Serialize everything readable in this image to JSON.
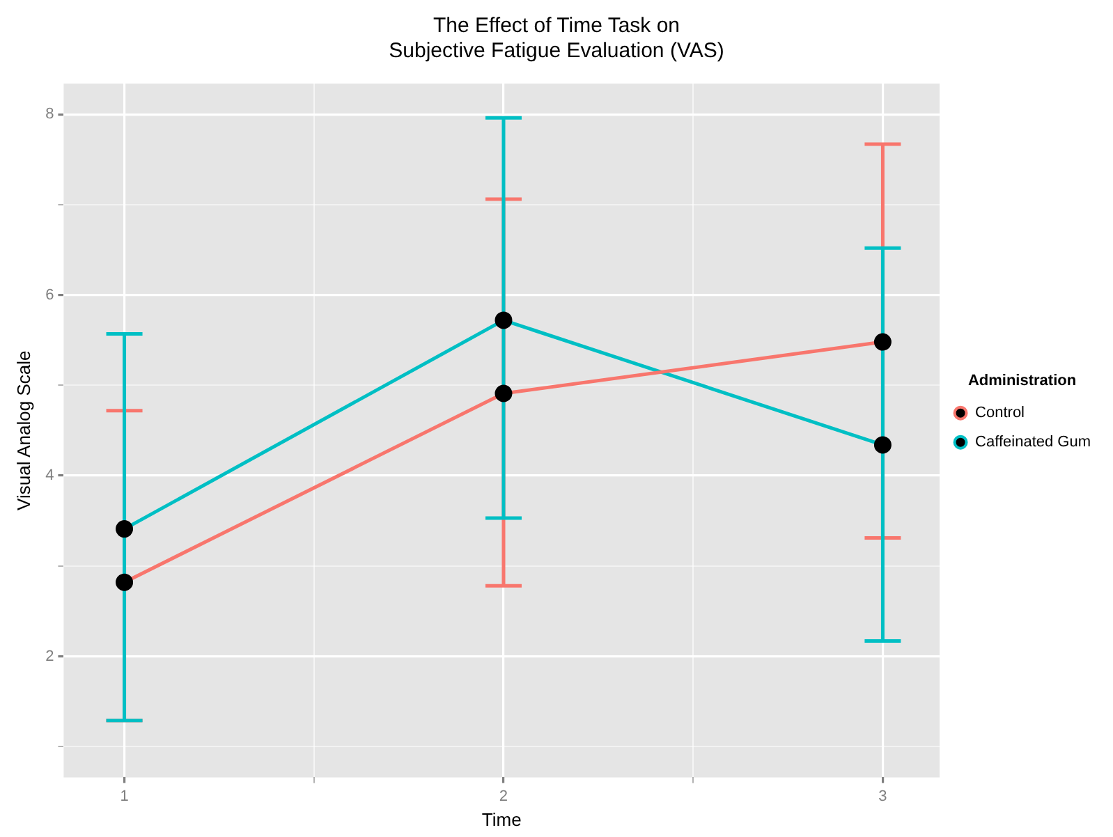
{
  "chart_data": {
    "type": "line",
    "title": "The Effect of Time Task on\nSubjective Fatigue Evaluation (VAS)",
    "xlabel": "Time",
    "ylabel": "Visual Analog Scale",
    "legend_title": "Administration",
    "legend": "right",
    "grid": true,
    "marker": "circle",
    "line_style": "solid",
    "x": [
      1,
      2,
      3
    ],
    "xlim": [
      0.84,
      3.15
    ],
    "xticks": [
      1,
      {
        "value": 1.5,
        "label": null
      },
      2,
      {
        "value": 2.5,
        "label": null
      },
      3
    ],
    "ylim": [
      0.66,
      8.34
    ],
    "yticks": [
      {
        "value": 1,
        "label": null
      },
      2,
      {
        "value": 3,
        "label": null
      },
      4,
      {
        "value": 5,
        "label": null
      },
      6,
      {
        "value": 7,
        "label": null
      },
      8
    ],
    "series": [
      {
        "name": "Control",
        "color": "#f8766d",
        "values": [
          2.82,
          4.91,
          5.48
        ],
        "errors": [
          [
            1.29,
            4.72
          ],
          [
            2.78,
            7.06
          ],
          [
            3.31,
            7.67
          ]
        ]
      },
      {
        "name": "Caffeinated Gum",
        "color": "#00bfc4",
        "values": [
          3.41,
          5.72,
          4.34
        ],
        "errors": [
          [
            1.29,
            5.57
          ],
          [
            3.53,
            7.96
          ],
          [
            2.17,
            6.52
          ]
        ]
      }
    ]
  }
}
